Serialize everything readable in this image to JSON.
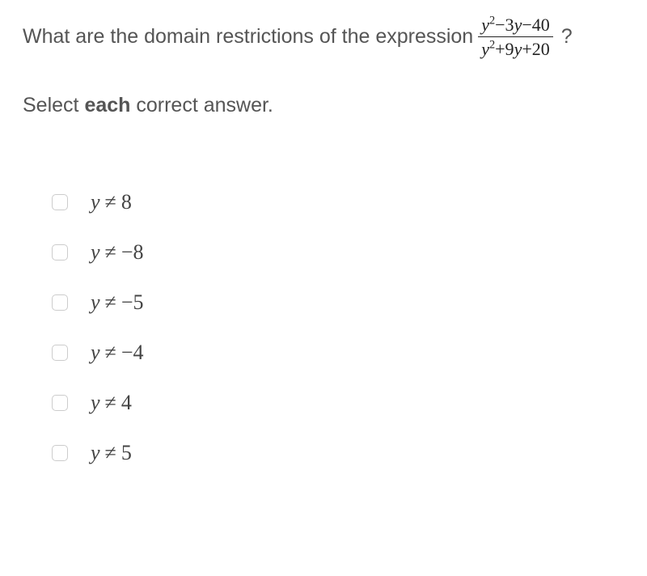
{
  "question": {
    "prefix": "What are the domain restrictions of the expression",
    "fraction": {
      "numerator": "y²−3y−40",
      "denominator": "y²+9y+20"
    },
    "suffix": "?"
  },
  "instruction": {
    "pre": "Select ",
    "bold": "each",
    "post": " correct answer."
  },
  "options": [
    {
      "var": "y",
      "op": "≠",
      "value": "8"
    },
    {
      "var": "y",
      "op": "≠",
      "value": "−8"
    },
    {
      "var": "y",
      "op": "≠",
      "value": "−5"
    },
    {
      "var": "y",
      "op": "≠",
      "value": "−4"
    },
    {
      "var": "y",
      "op": "≠",
      "value": "4"
    },
    {
      "var": "y",
      "op": "≠",
      "value": "5"
    }
  ],
  "colors": {
    "background": "#ffffff",
    "text": "#555555",
    "math": "#222222",
    "checkbox_border": "#cccccc"
  },
  "typography": {
    "body_fontsize": 25,
    "math_fontsize": 26,
    "fraction_fontsize": 22,
    "math_family": "Times New Roman"
  }
}
